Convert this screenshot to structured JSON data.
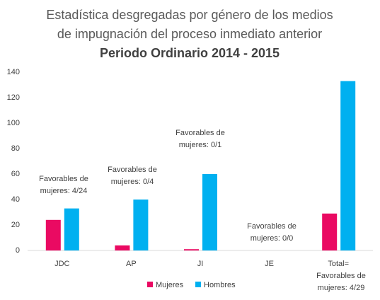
{
  "chart_data": {
    "type": "bar",
    "title": [
      "Estadística desgregadas por género de los medios",
      "de impugnación del proceso inmediato anterior"
    ],
    "subtitle": "Periodo Ordinario 2014 - 2015",
    "categories": [
      "JDC",
      "AP",
      "JI",
      "JE",
      "Total="
    ],
    "series": [
      {
        "name": "Mujeres",
        "color": "#ea0a62",
        "values": [
          24,
          4,
          1,
          0,
          29
        ]
      },
      {
        "name": "Hombres",
        "color": "#00b0f0",
        "values": [
          33,
          40,
          60,
          0,
          133
        ]
      }
    ],
    "ylim": [
      0,
      140
    ],
    "yticks": [
      0,
      20,
      40,
      60,
      80,
      100,
      120,
      140
    ],
    "grid": false,
    "legend": "bottom",
    "annotations": [
      [
        "Favorables de",
        "mujeres: 4/24"
      ],
      [
        "Favorables de",
        "mujeres: 0/4"
      ],
      [
        "Favorables de",
        "mujeres: 0/1"
      ],
      [
        "Favorables de",
        "mujeres: 0/0"
      ],
      [
        "Favorables de",
        "mujeres: 4/29"
      ]
    ]
  }
}
